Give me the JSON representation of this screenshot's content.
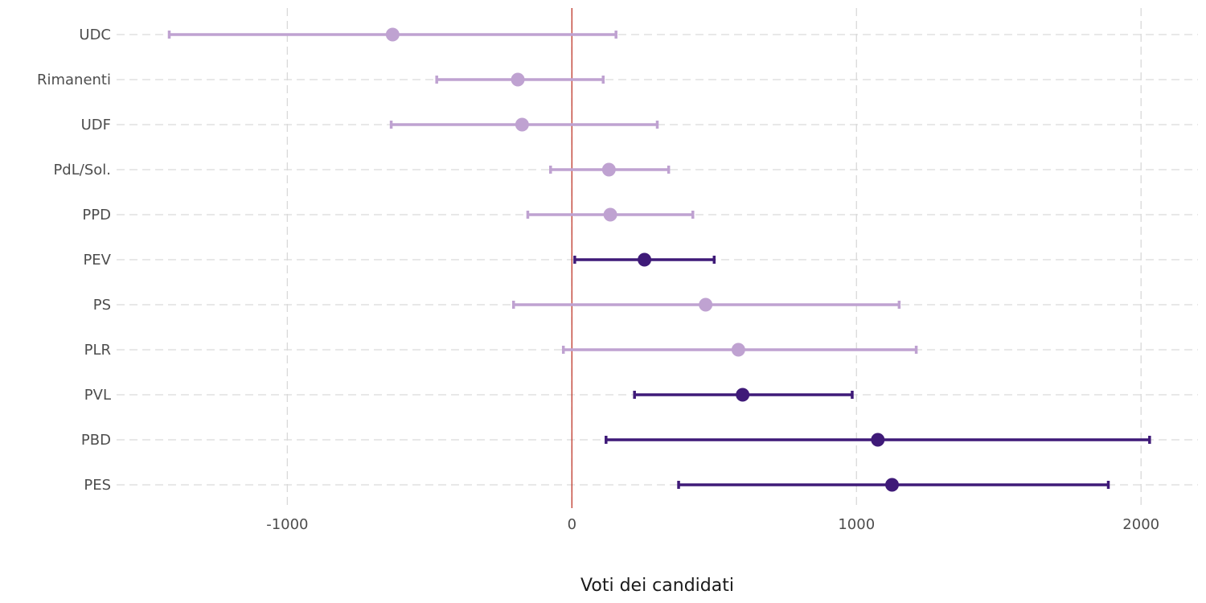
{
  "chart_data": {
    "type": "errorbar",
    "xlabel": "Voti dei candidati",
    "ylabel": "",
    "xlim": [
      -1600,
      2200
    ],
    "x_ticks": [
      -1000,
      0,
      1000,
      2000
    ],
    "x_tick_labels": [
      "-1000",
      "0",
      "1000",
      "2000"
    ],
    "reference_line": {
      "x": 0,
      "color": "#c0392b"
    },
    "grid": true,
    "colors": {
      "significant": "#3f1a78",
      "not_significant": "#bfa2d1"
    },
    "categories": [
      "UDC",
      "Rimanenti",
      "UDF",
      "PdL/Sol.",
      "PPD",
      "PEV",
      "PS",
      "PLR",
      "PVL",
      "PBD",
      "PES"
    ],
    "estimates": [
      -630,
      -190,
      -175,
      130,
      135,
      255,
      470,
      585,
      600,
      1075,
      1125
    ],
    "lower": [
      -1415,
      -475,
      -635,
      -75,
      -155,
      10,
      -205,
      -30,
      220,
      120,
      375
    ],
    "upper": [
      155,
      110,
      300,
      340,
      425,
      500,
      1150,
      1210,
      985,
      2030,
      1885
    ],
    "significant": [
      false,
      false,
      false,
      false,
      false,
      true,
      false,
      false,
      true,
      true,
      true
    ]
  }
}
